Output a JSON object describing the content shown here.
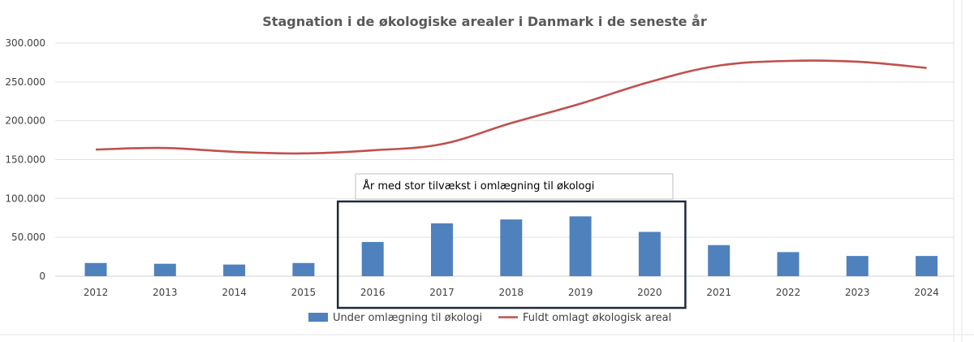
{
  "chart_data": {
    "type": "bar+line",
    "title": "Stagnation i de økologiske arealer i Danmark i de seneste år",
    "categories": [
      "2012",
      "2013",
      "2014",
      "2015",
      "2016",
      "2017",
      "2018",
      "2019",
      "2020",
      "2021",
      "2022",
      "2023",
      "2024"
    ],
    "series": [
      {
        "name": "Under omlægning til økologi",
        "type": "bar",
        "color": "#4f81bd",
        "values": [
          17000,
          16000,
          15000,
          17000,
          44000,
          68000,
          73000,
          77000,
          57000,
          40000,
          31000,
          26000,
          26000
        ]
      },
      {
        "name": "Fuldt omlagt økologisk areal",
        "type": "line",
        "color": "#c0504d",
        "values": [
          163000,
          165000,
          160000,
          158000,
          162000,
          170000,
          197000,
          222000,
          250000,
          271000,
          277000,
          276000,
          268000
        ]
      }
    ],
    "ylim": [
      0,
      300000
    ],
    "yticks": [
      0,
      50000,
      100000,
      150000,
      200000,
      250000,
      300000
    ],
    "ytick_labels": [
      "0",
      "50.000",
      "100.000",
      "150.000",
      "200.000",
      "250.000",
      "300.000"
    ],
    "grid": true,
    "legend": "bottom",
    "annotation": {
      "text": "År med stor tilvækst i omlægning til økologi",
      "highlight_categories": [
        "2016",
        "2020"
      ]
    },
    "xlabel": "",
    "ylabel": ""
  }
}
